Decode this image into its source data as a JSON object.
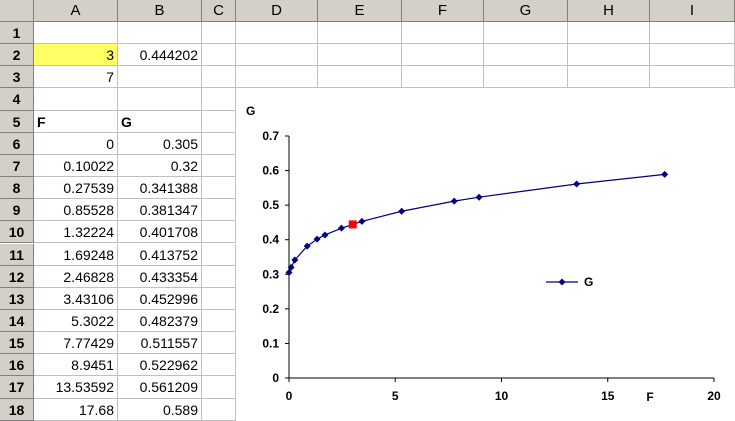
{
  "columns": [
    "A",
    "B",
    "C",
    "D",
    "E",
    "F",
    "G",
    "H",
    "I"
  ],
  "rows": [
    "1",
    "2",
    "3",
    "4",
    "5",
    "6",
    "7",
    "8",
    "9",
    "10",
    "11",
    "12",
    "13",
    "14",
    "15",
    "16",
    "17",
    "18"
  ],
  "cells": {
    "A2": "3",
    "B2": "0.444202",
    "A3": "7",
    "A5": "F",
    "B5": "G",
    "A6": "0",
    "B6": "0.305",
    "A7": "0.10022",
    "B7": "0.32",
    "A8": "0.27539",
    "B8": "0.341388",
    "A9": "0.85528",
    "B9": "0.381347",
    "A10": "1.32224",
    "B10": "0.401708",
    "A11": "1.69248",
    "B11": "0.413752",
    "A12": "2.46828",
    "B12": "0.433354",
    "A13": "3.43106",
    "B13": "0.452996",
    "A14": "5.3022",
    "B14": "0.482379",
    "A15": "7.77429",
    "B15": "0.511557",
    "A16": "8.9451",
    "B16": "0.522962",
    "A17": "13.53592",
    "B17": "0.561209",
    "A18": "17.68",
    "B18": "0.589"
  },
  "colors": {
    "series": "#000080",
    "highlight_point": "#ff0000",
    "selected_cell": "#ffff66"
  },
  "chart_data": {
    "type": "line",
    "title": "",
    "xlabel": "F",
    "ylabel": "G",
    "xlim": [
      0,
      20
    ],
    "ylim": [
      0,
      0.7
    ],
    "xticks": [
      "0",
      "5",
      "10",
      "15",
      "20"
    ],
    "yticks": [
      "0",
      "0.1",
      "0.2",
      "0.3",
      "0.4",
      "0.5",
      "0.6",
      "0.7"
    ],
    "legend": {
      "position": "right",
      "entries": [
        "G"
      ]
    },
    "series": [
      {
        "name": "G",
        "x": [
          0,
          0.10022,
          0.27539,
          0.85528,
          1.32224,
          1.69248,
          2.46828,
          3.43106,
          5.3022,
          7.77429,
          8.9451,
          13.53592,
          17.68
        ],
        "y": [
          0.305,
          0.32,
          0.341388,
          0.381347,
          0.401708,
          0.413752,
          0.433354,
          0.452996,
          0.482379,
          0.511557,
          0.522962,
          0.561209,
          0.589
        ]
      }
    ],
    "highlight": {
      "x": 3,
      "y": 0.444202
    }
  }
}
